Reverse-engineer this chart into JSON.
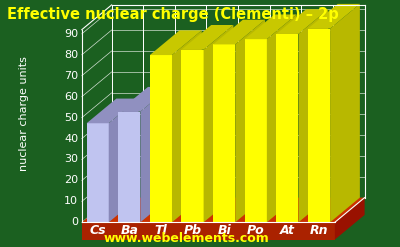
{
  "title": "Effective nuclear charge (Clementi) – 2p",
  "ylabel": "nuclear charge units",
  "website": "www.webelements.com",
  "elements": [
    "Cs",
    "Ba",
    "Tl",
    "Pb",
    "Bi",
    "Po",
    "At",
    "Rn"
  ],
  "values": [
    47.29,
    52.85,
    79.86,
    82.42,
    84.94,
    87.45,
    89.95,
    92.5
  ],
  "bar_colors_front": [
    "#c0c4f0",
    "#c0c4f0",
    "#ffff00",
    "#ffff00",
    "#ffff00",
    "#ffff00",
    "#ffff00",
    "#ffff00"
  ],
  "bar_colors_top": [
    "#9090c0",
    "#9090c0",
    "#c8c800",
    "#c8c800",
    "#c8c800",
    "#c8c800",
    "#c8c800",
    "#c8c800"
  ],
  "bar_colors_side": [
    "#8888b8",
    "#8888b8",
    "#b8b800",
    "#b8b800",
    "#b8b800",
    "#b8b800",
    "#b8b800",
    "#b8b800"
  ],
  "background_color": "#1b6020",
  "base_top_color": "#cc3300",
  "base_front_color": "#aa2200",
  "base_side_color": "#991100",
  "grid_color": "#ffffff",
  "title_color": "#ffff00",
  "label_color": "#ffffff",
  "tick_color": "#ffffff",
  "element_label_color": "#ffffff",
  "website_color": "#ffff00",
  "ymax": 92,
  "yticks": [
    0,
    10,
    20,
    30,
    40,
    50,
    60,
    70,
    80,
    90
  ],
  "title_fontsize": 10.5,
  "label_fontsize": 8,
  "tick_fontsize": 8,
  "element_fontsize": 9
}
